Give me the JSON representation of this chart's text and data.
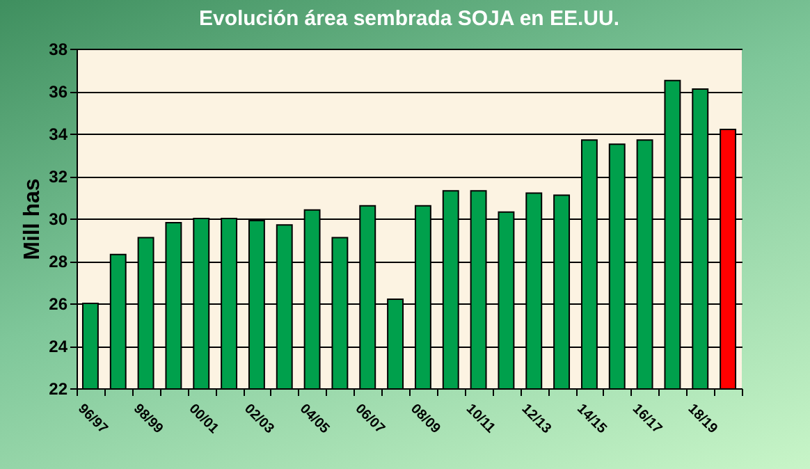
{
  "chart_data": {
    "type": "bar",
    "title": "Evolución área sembrada SOJA en EE.UU.",
    "ylabel": "Mill has",
    "categories": [
      "96/97",
      null,
      "98/99",
      null,
      "00/01",
      null,
      "02/03",
      null,
      "04/05",
      null,
      "06/07",
      null,
      "08/09",
      null,
      "10/11",
      null,
      "12/13",
      null,
      "14/15",
      null,
      "16/17",
      null,
      "18/19",
      null
    ],
    "values": [
      26.0,
      28.3,
      29.1,
      29.8,
      30.0,
      30.0,
      29.9,
      29.7,
      30.4,
      29.1,
      30.6,
      26.2,
      30.6,
      31.3,
      31.3,
      30.3,
      31.2,
      31.1,
      33.7,
      33.5,
      33.7,
      36.5,
      36.1,
      34.2
    ],
    "colors": [
      "#00a04c",
      "#00a04c",
      "#00a04c",
      "#00a04c",
      "#00a04c",
      "#00a04c",
      "#00a04c",
      "#00a04c",
      "#00a04c",
      "#00a04c",
      "#00a04c",
      "#00a04c",
      "#00a04c",
      "#00a04c",
      "#00a04c",
      "#00a04c",
      "#00a04c",
      "#00a04c",
      "#00a04c",
      "#00a04c",
      "#00a04c",
      "#00a04c",
      "#00a04c",
      "#ff0000"
    ],
    "ylim": [
      22,
      38
    ],
    "yticks": [
      22,
      24,
      26,
      28,
      30,
      32,
      34,
      36,
      38
    ],
    "grid": "y"
  }
}
